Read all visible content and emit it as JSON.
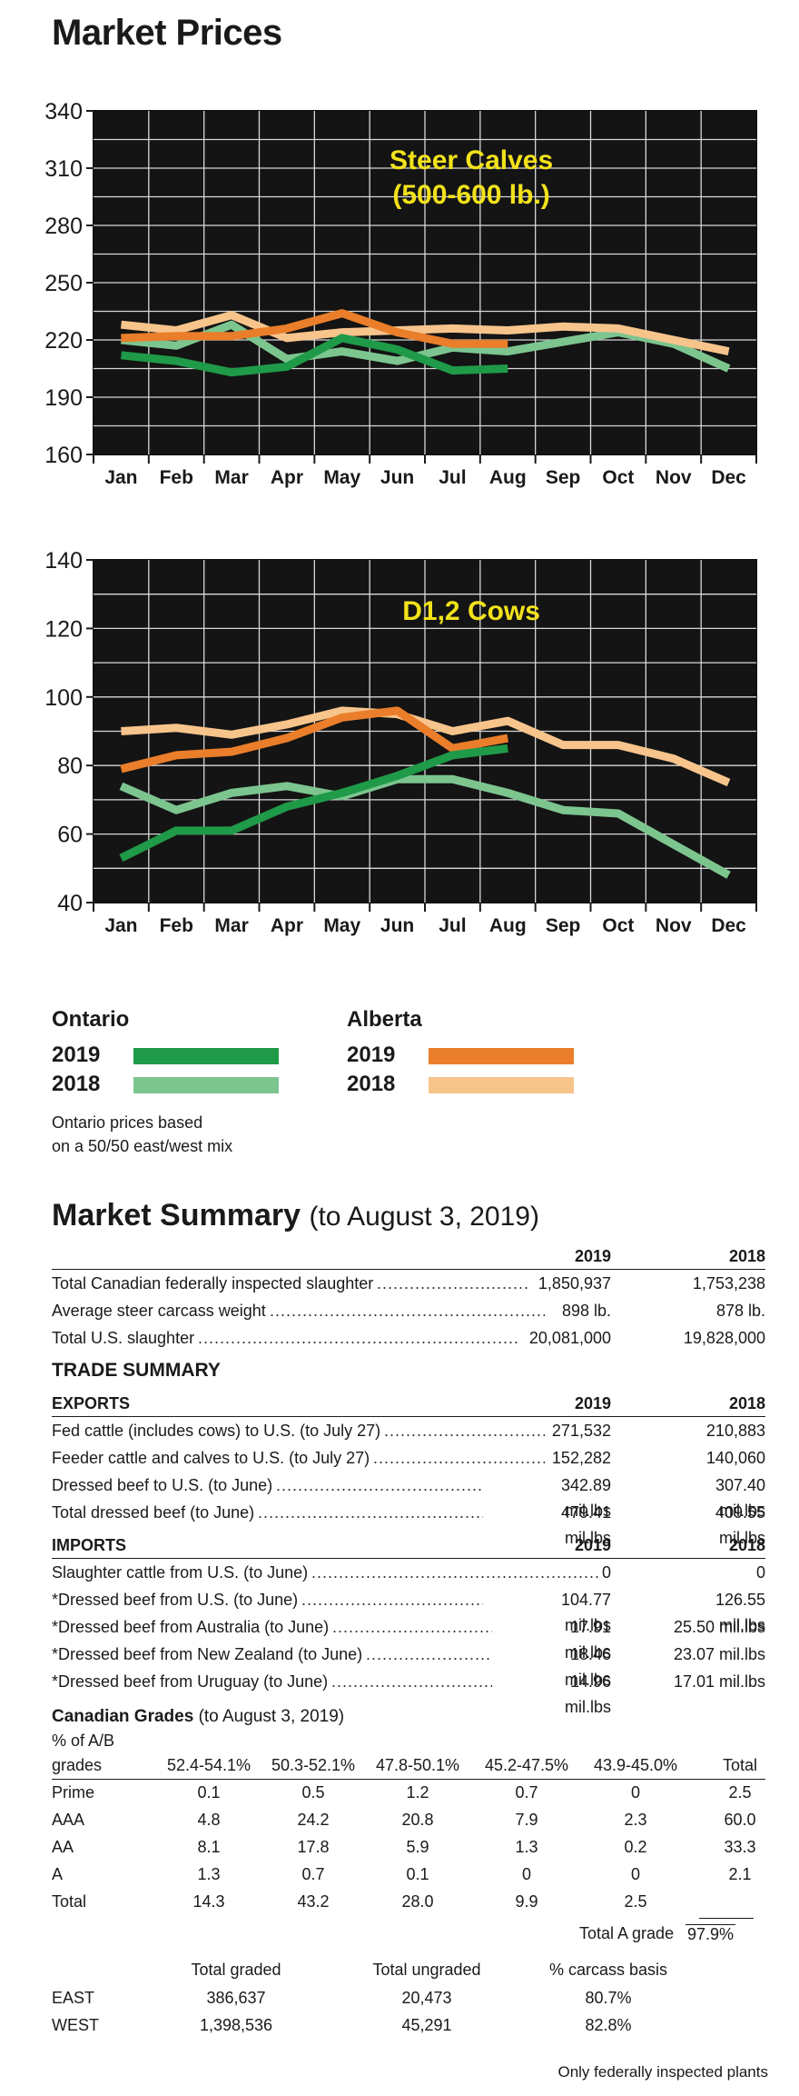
{
  "page": {
    "title": "Market Prices"
  },
  "colors": {
    "ontario_2019": "#1f9a48",
    "ontario_2018": "#7cc58f",
    "alberta_2019": "#ea7e2a",
    "alberta_2018": "#f7c48c",
    "chart_bg": "#141414",
    "chart_title": "#f2e21b"
  },
  "chart_data": [
    {
      "type": "line",
      "title": "Steer Calves",
      "subtitle": "(500-600 lb.)",
      "categories": [
        "Jan",
        "Feb",
        "Mar",
        "Apr",
        "May",
        "Jun",
        "Jul",
        "Aug",
        "Sep",
        "Oct",
        "Nov",
        "Dec"
      ],
      "ylim": [
        160,
        340
      ],
      "yticks": [
        160,
        190,
        220,
        250,
        280,
        310,
        340
      ],
      "grid": true,
      "series": [
        {
          "name": "Ontario 2019",
          "color_key": "ontario_2019",
          "values": [
            212,
            209,
            203,
            206,
            221,
            215,
            204,
            205,
            null,
            null,
            null,
            null
          ]
        },
        {
          "name": "Ontario 2018",
          "color_key": "ontario_2018",
          "values": [
            220,
            217,
            228,
            210,
            214,
            209,
            216,
            214,
            219,
            224,
            218,
            205
          ]
        },
        {
          "name": "Alberta 2019",
          "color_key": "alberta_2019",
          "values": [
            221,
            222,
            222,
            226,
            234,
            224,
            218,
            218,
            null,
            null,
            null,
            null
          ]
        },
        {
          "name": "Alberta 2018",
          "color_key": "alberta_2018",
          "values": [
            228,
            225,
            233,
            221,
            224,
            225,
            226,
            225,
            227,
            226,
            220,
            214
          ]
        }
      ]
    },
    {
      "type": "line",
      "title": "D1,2 Cows",
      "categories": [
        "Jan",
        "Feb",
        "Mar",
        "Apr",
        "May",
        "Jun",
        "Jul",
        "Aug",
        "Sep",
        "Oct",
        "Nov",
        "Dec"
      ],
      "ylim": [
        40,
        140
      ],
      "yticks": [
        40,
        60,
        80,
        100,
        120,
        140
      ],
      "grid": true,
      "series": [
        {
          "name": "Ontario 2019",
          "color_key": "ontario_2019",
          "values": [
            53,
            61,
            61,
            68,
            72,
            77,
            83,
            85,
            null,
            null,
            null,
            null
          ]
        },
        {
          "name": "Ontario 2018",
          "color_key": "ontario_2018",
          "values": [
            74,
            67,
            72,
            74,
            71,
            76,
            76,
            72,
            67,
            66,
            57,
            48
          ]
        },
        {
          "name": "Alberta 2019",
          "color_key": "alberta_2019",
          "values": [
            79,
            83,
            84,
            88,
            94,
            96,
            85,
            88,
            null,
            null,
            null,
            null
          ]
        },
        {
          "name": "Alberta 2018",
          "color_key": "alberta_2018",
          "values": [
            90,
            91,
            89,
            92,
            96,
            95,
            90,
            93,
            86,
            86,
            82,
            75
          ]
        }
      ]
    }
  ],
  "legend": {
    "ontario": {
      "label": "Ontario",
      "y2019": "2019",
      "y2018": "2018"
    },
    "alberta": {
      "label": "Alberta",
      "y2019": "2019",
      "y2018": "2018"
    },
    "note_line1": "Ontario prices based",
    "note_line2": "on a 50/50 east/west mix"
  },
  "summary": {
    "title": "Market Summary",
    "subtitle": "(to August 3, 2019)",
    "col_2019": "2019",
    "col_2018": "2018",
    "rows": [
      {
        "label": "Total Canadian federally inspected slaughter",
        "v2019": "1,850,937",
        "v2018": "1,753,238"
      },
      {
        "label": "Average steer carcass weight",
        "v2019": "898 lb.",
        "v2018": "878 lb."
      },
      {
        "label": "Total U.S. slaughter",
        "v2019": "20,081,000",
        "v2018": "19,828,000"
      }
    ],
    "trade_title": "TRADE SUMMARY",
    "exports_label": "EXPORTS",
    "exports": [
      {
        "label": "Fed cattle (includes cows) to U.S. (to July 27)",
        "v2019": "271,532",
        "v2018": "210,883"
      },
      {
        "label": "Feeder cattle and calves to U.S. (to July 27)",
        "v2019": "152,282",
        "v2018": "140,060"
      },
      {
        "label": "Dressed beef to U.S. (to June)",
        "v2019": "342.89 mil.lbs",
        "v2018": "307.40 mil.lbs"
      },
      {
        "label": "Total dressed beef (to June)",
        "v2019": "479.41 mil.lbs",
        "v2018": "409.55 mil.lbs"
      }
    ],
    "imports_label": "IMPORTS",
    "imports": [
      {
        "label": "Slaughter cattle from U.S. (to June)",
        "v2019": "0",
        "v2018": "0"
      },
      {
        "label": "*Dressed beef from U.S. (to June)",
        "v2019": "104.77 mil.lbs",
        "v2018": "126.55 mil.lbs"
      },
      {
        "label": "*Dressed beef from Australia (to June)",
        "v2019": "17.91 mil.lbs",
        "v2018": "25.50 mil.lbs"
      },
      {
        "label": "*Dressed beef from New Zealand (to June)",
        "v2019": "18.46 mil.lbs",
        "v2018": "23.07 mil.lbs"
      },
      {
        "label": "*Dressed beef from Uruguay (to June)",
        "v2019": "14.96 mil.lbs",
        "v2018": "17.01 mil.lbs"
      }
    ]
  },
  "grades": {
    "title": "Canadian Grades",
    "subtitle": "(to August 3, 2019)",
    "pct_label": "% of A/B",
    "header": [
      "grades",
      "52.4-54.1%",
      "50.3-52.1%",
      "47.8-50.1%",
      "45.2-47.5%",
      "43.9-45.0%",
      "Total"
    ],
    "rows": [
      [
        "Prime",
        "0.1",
        "0.5",
        "1.2",
        "0.7",
        "0",
        "2.5"
      ],
      [
        "AAA",
        "4.8",
        "24.2",
        "20.8",
        "7.9",
        "2.3",
        "60.0"
      ],
      [
        "AA",
        "8.1",
        "17.8",
        "5.9",
        "1.3",
        "0.2",
        "33.3"
      ],
      [
        "A",
        "1.3",
        "0.7",
        "0.1",
        "0",
        "0",
        "2.1"
      ],
      [
        "Total",
        "14.3",
        "43.2",
        "28.0",
        "9.9",
        "2.5",
        ""
      ]
    ],
    "total_a_label": "Total A grade",
    "total_a_value": "97.9%",
    "graded_header": [
      "",
      "Total graded",
      "Total ungraded",
      "% carcass basis"
    ],
    "graded_rows": [
      [
        "EAST",
        "386,637",
        "20,473",
        "80.7%"
      ],
      [
        "WEST",
        "1,398,536",
        "45,291",
        "82.8%"
      ]
    ],
    "footnote": "Only federally inspected plants"
  }
}
